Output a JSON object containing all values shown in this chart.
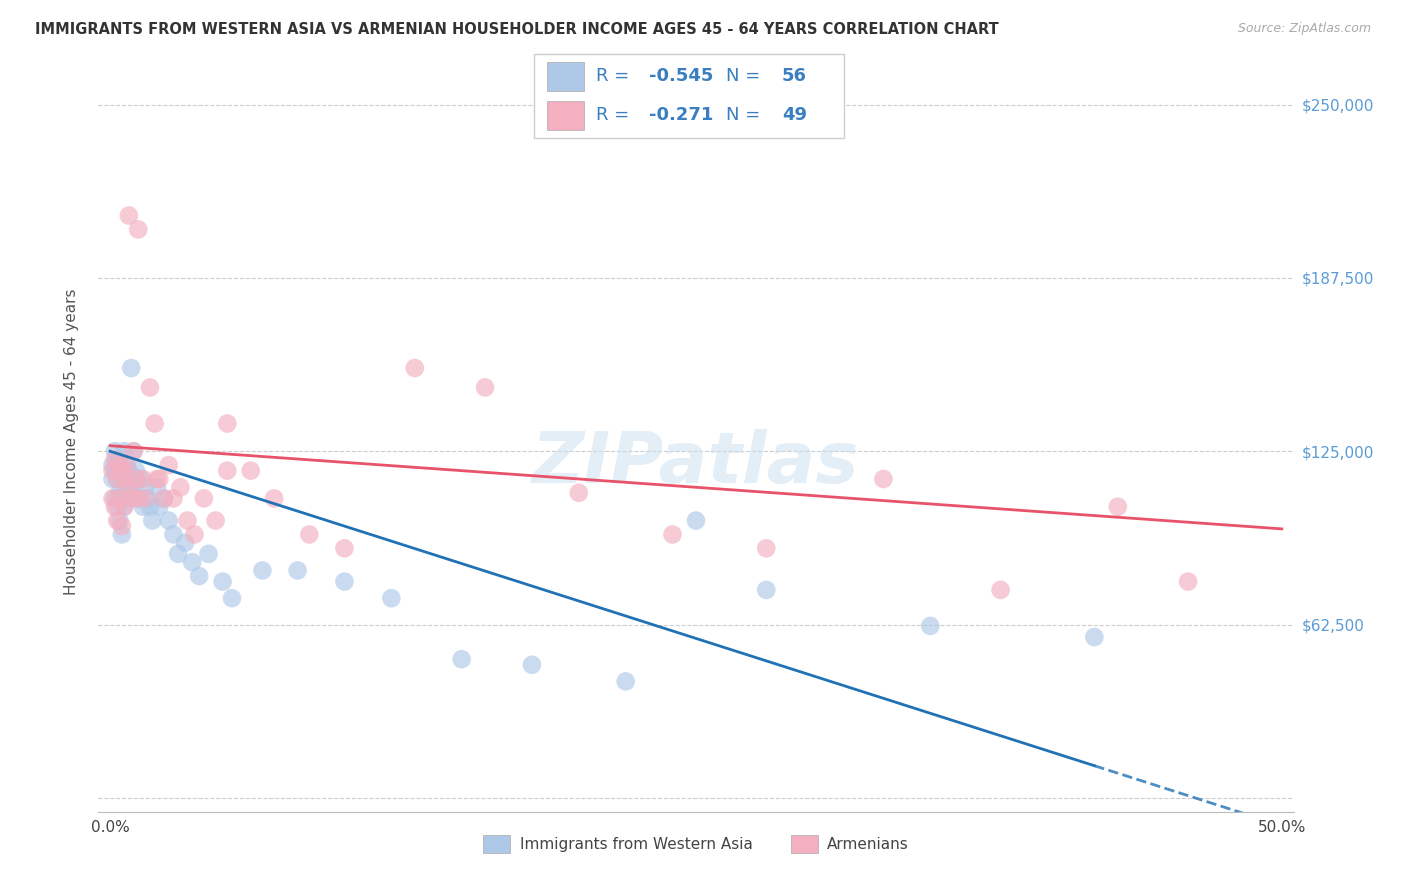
{
  "title": "IMMIGRANTS FROM WESTERN ASIA VS ARMENIAN HOUSEHOLDER INCOME AGES 45 - 64 YEARS CORRELATION CHART",
  "source": "Source: ZipAtlas.com",
  "ylabel": "Householder Income Ages 45 - 64 years",
  "xlim": [
    -0.005,
    0.505
  ],
  "ylim": [
    -5000,
    262000
  ],
  "yticks": [
    0,
    62500,
    125000,
    187500,
    250000
  ],
  "ytick_labels": [
    "",
    "$62,500",
    "$125,000",
    "$187,500",
    "$250,000"
  ],
  "xtick_labels": [
    "0.0%",
    "",
    "",
    "",
    "",
    "50.0%"
  ],
  "xticks": [
    0.0,
    0.1,
    0.2,
    0.3,
    0.4,
    0.5
  ],
  "blue_R": -0.545,
  "blue_N": 56,
  "pink_R": -0.271,
  "pink_N": 49,
  "blue_color": "#aec9e8",
  "pink_color": "#f4afc0",
  "blue_line_color": "#2171b5",
  "pink_line_color": "#e8536a",
  "legend_label_blue": "Immigrants from Western Asia",
  "legend_label_pink": "Armenians",
  "legend_text_color": "#3a7fc1",
  "watermark": "ZIPatlas",
  "blue_scatter_x": [
    0.001,
    0.001,
    0.002,
    0.002,
    0.002,
    0.003,
    0.003,
    0.003,
    0.004,
    0.004,
    0.004,
    0.005,
    0.005,
    0.005,
    0.006,
    0.006,
    0.006,
    0.007,
    0.007,
    0.008,
    0.008,
    0.009,
    0.009,
    0.01,
    0.01,
    0.011,
    0.012,
    0.013,
    0.014,
    0.015,
    0.016,
    0.017,
    0.018,
    0.02,
    0.021,
    0.023,
    0.025,
    0.027,
    0.029,
    0.032,
    0.035,
    0.038,
    0.042,
    0.048,
    0.052,
    0.065,
    0.08,
    0.1,
    0.12,
    0.15,
    0.18,
    0.22,
    0.28,
    0.35,
    0.42,
    0.25
  ],
  "blue_scatter_y": [
    120000,
    115000,
    125000,
    118000,
    108000,
    122000,
    115000,
    105000,
    120000,
    110000,
    100000,
    118000,
    108000,
    95000,
    125000,
    115000,
    105000,
    120000,
    112000,
    118000,
    108000,
    155000,
    115000,
    125000,
    110000,
    118000,
    108000,
    115000,
    105000,
    112000,
    108000,
    105000,
    100000,
    112000,
    105000,
    108000,
    100000,
    95000,
    88000,
    92000,
    85000,
    80000,
    88000,
    78000,
    72000,
    82000,
    82000,
    78000,
    72000,
    50000,
    48000,
    42000,
    75000,
    62000,
    58000,
    100000
  ],
  "pink_scatter_x": [
    0.001,
    0.001,
    0.002,
    0.002,
    0.003,
    0.003,
    0.004,
    0.004,
    0.005,
    0.005,
    0.006,
    0.006,
    0.007,
    0.008,
    0.009,
    0.01,
    0.011,
    0.012,
    0.014,
    0.015,
    0.017,
    0.019,
    0.021,
    0.023,
    0.025,
    0.027,
    0.03,
    0.033,
    0.036,
    0.04,
    0.045,
    0.05,
    0.06,
    0.07,
    0.085,
    0.1,
    0.13,
    0.16,
    0.2,
    0.24,
    0.28,
    0.33,
    0.38,
    0.43,
    0.46,
    0.02,
    0.008,
    0.012,
    0.05
  ],
  "pink_scatter_y": [
    118000,
    108000,
    122000,
    105000,
    115000,
    100000,
    120000,
    108000,
    118000,
    98000,
    115000,
    105000,
    120000,
    112000,
    108000,
    125000,
    115000,
    108000,
    115000,
    108000,
    148000,
    135000,
    115000,
    108000,
    120000,
    108000,
    112000,
    100000,
    95000,
    108000,
    100000,
    135000,
    118000,
    108000,
    95000,
    90000,
    155000,
    148000,
    110000,
    95000,
    90000,
    115000,
    75000,
    105000,
    78000,
    115000,
    210000,
    205000,
    118000
  ]
}
